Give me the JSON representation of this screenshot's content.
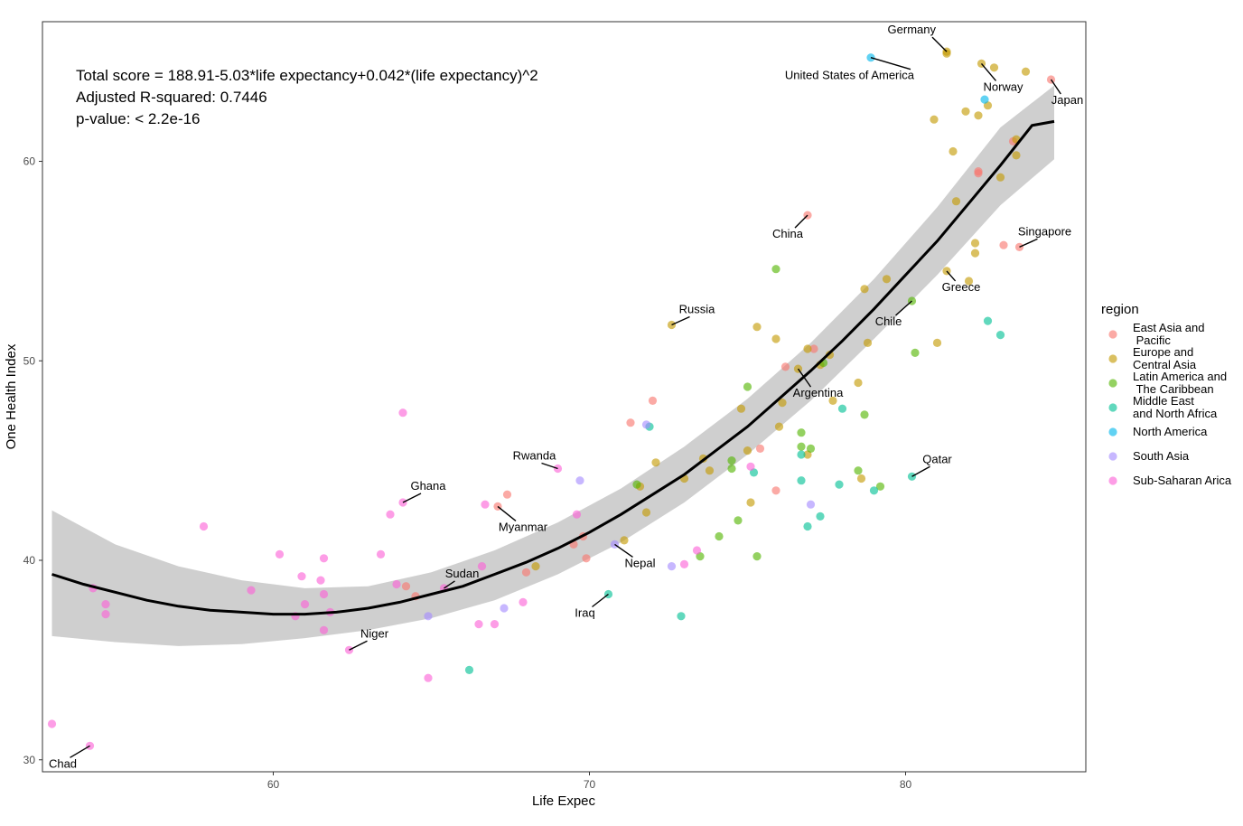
{
  "chart_data": {
    "type": "scatter",
    "xlabel": "Life Expec",
    "ylabel": "One Health Index",
    "xlim": [
      52.7,
      85.7
    ],
    "ylim": [
      29.4,
      67.0
    ],
    "x_ticks": [
      60,
      70,
      80
    ],
    "y_ticks": [
      30,
      40,
      50,
      60
    ],
    "grid": false,
    "annotation": [
      "Total score = 188.91-5.03*life expectancy+0.042*(life expectancy)^2",
      "Adjusted R-squared:  0.7446",
      "p-value: < 2.2e-16"
    ],
    "fit": {
      "type": "quadratic",
      "x_range": [
        53.0,
        84.7
      ],
      "curve": [
        [
          53,
          39.3
        ],
        [
          54,
          38.8
        ],
        [
          55,
          38.4
        ],
        [
          56,
          38.0
        ],
        [
          57,
          37.7
        ],
        [
          58,
          37.5
        ],
        [
          59,
          37.4
        ],
        [
          60,
          37.3
        ],
        [
          61,
          37.3
        ],
        [
          62,
          37.4
        ],
        [
          63,
          37.6
        ],
        [
          64,
          37.9
        ],
        [
          65,
          38.3
        ],
        [
          66,
          38.7
        ],
        [
          67,
          39.3
        ],
        [
          68,
          39.9
        ],
        [
          69,
          40.6
        ],
        [
          70,
          41.4
        ],
        [
          71,
          42.3
        ],
        [
          72,
          43.3
        ],
        [
          73,
          44.3
        ],
        [
          74,
          45.5
        ],
        [
          75,
          46.7
        ],
        [
          76,
          48.1
        ],
        [
          77,
          49.5
        ],
        [
          78,
          51.0
        ],
        [
          79,
          52.6
        ],
        [
          80,
          54.3
        ],
        [
          81,
          56.0
        ],
        [
          82,
          57.9
        ],
        [
          83,
          59.8
        ],
        [
          84,
          61.8
        ],
        [
          84.7,
          62.0
        ]
      ],
      "band": [
        [
          53,
          36.2,
          42.5
        ],
        [
          55,
          35.9,
          40.8
        ],
        [
          57,
          35.7,
          39.7
        ],
        [
          59,
          35.8,
          39.0
        ],
        [
          61,
          36.1,
          38.6
        ],
        [
          63,
          36.5,
          38.7
        ],
        [
          65,
          37.1,
          39.4
        ],
        [
          67,
          38.0,
          40.5
        ],
        [
          69,
          39.3,
          41.9
        ],
        [
          71,
          40.9,
          43.6
        ],
        [
          73,
          42.9,
          45.7
        ],
        [
          75,
          45.3,
          48.1
        ],
        [
          77,
          48.0,
          50.9
        ],
        [
          79,
          51.1,
          54.1
        ],
        [
          81,
          54.3,
          57.7
        ],
        [
          83,
          57.8,
          61.7
        ],
        [
          84.7,
          60.1,
          63.8
        ]
      ]
    },
    "series": [
      {
        "name": "East Asia and\n Pacific",
        "color": "#F8766D",
        "points": [
          [
            84.6,
            64.1
          ],
          [
            83.6,
            55.7
          ],
          [
            83.1,
            55.8
          ],
          [
            83.4,
            61.0
          ],
          [
            82.3,
            59.5
          ],
          [
            82.3,
            59.4
          ],
          [
            76.9,
            57.3
          ],
          [
            77.1,
            50.6
          ],
          [
            76.2,
            49.7
          ],
          [
            72.0,
            48.0
          ],
          [
            71.3,
            46.9
          ],
          [
            75.4,
            45.6
          ],
          [
            75.9,
            43.5
          ],
          [
            67.4,
            43.3
          ],
          [
            67.1,
            42.7
          ],
          [
            69.8,
            41.2
          ],
          [
            69.5,
            40.8
          ],
          [
            69.9,
            40.1
          ],
          [
            68.0,
            39.4
          ],
          [
            64.5,
            38.2
          ],
          [
            64.2,
            38.7
          ]
        ]
      },
      {
        "name": "Europe and\nCentral Asia",
        "color": "#C49A00",
        "points": [
          [
            81.3,
            65.5
          ],
          [
            81.3,
            65.4
          ],
          [
            82.4,
            64.9
          ],
          [
            82.8,
            64.7
          ],
          [
            83.8,
            64.5
          ],
          [
            82.6,
            62.8
          ],
          [
            82.3,
            62.3
          ],
          [
            81.9,
            62.5
          ],
          [
            80.9,
            62.1
          ],
          [
            83.5,
            61.1
          ],
          [
            83.5,
            60.3
          ],
          [
            81.5,
            60.5
          ],
          [
            83.0,
            59.2
          ],
          [
            81.6,
            58.0
          ],
          [
            82.2,
            55.9
          ],
          [
            82.2,
            55.4
          ],
          [
            81.3,
            54.5
          ],
          [
            82.0,
            54.0
          ],
          [
            79.4,
            54.1
          ],
          [
            78.7,
            53.6
          ],
          [
            72.6,
            51.8
          ],
          [
            75.3,
            51.7
          ],
          [
            75.9,
            51.1
          ],
          [
            76.9,
            50.6
          ],
          [
            77.6,
            50.3
          ],
          [
            78.8,
            50.9
          ],
          [
            81.0,
            50.9
          ],
          [
            77.3,
            49.8
          ],
          [
            76.6,
            49.6
          ],
          [
            78.5,
            48.9
          ],
          [
            76.1,
            47.9
          ],
          [
            77.7,
            48.0
          ],
          [
            74.8,
            47.6
          ],
          [
            76.0,
            46.7
          ],
          [
            72.1,
            44.9
          ],
          [
            73.6,
            45.1
          ],
          [
            75.0,
            45.5
          ],
          [
            76.9,
            45.3
          ],
          [
            73.8,
            44.5
          ],
          [
            73.0,
            44.1
          ],
          [
            71.6,
            43.7
          ],
          [
            78.6,
            44.1
          ],
          [
            75.1,
            42.9
          ],
          [
            71.8,
            42.4
          ],
          [
            71.1,
            41.0
          ],
          [
            68.3,
            39.7
          ]
        ]
      },
      {
        "name": "Latin America and\n The Caribbean",
        "color": "#53B400",
        "points": [
          [
            75.9,
            54.6
          ],
          [
            80.2,
            53.0
          ],
          [
            80.3,
            50.4
          ],
          [
            77.4,
            49.9
          ],
          [
            75.0,
            48.7
          ],
          [
            76.7,
            46.4
          ],
          [
            78.7,
            47.3
          ],
          [
            78.5,
            44.5
          ],
          [
            77.0,
            45.6
          ],
          [
            76.7,
            45.7
          ],
          [
            74.5,
            44.6
          ],
          [
            74.5,
            45.0
          ],
          [
            71.5,
            43.8
          ],
          [
            74.7,
            42.0
          ],
          [
            74.1,
            41.2
          ],
          [
            73.5,
            40.2
          ],
          [
            75.3,
            40.2
          ],
          [
            79.2,
            43.7
          ]
        ]
      },
      {
        "name": "Middle East\nand North Africa",
        "color": "#00C094",
        "points": [
          [
            82.6,
            52.0
          ],
          [
            83.0,
            51.3
          ],
          [
            78.0,
            47.6
          ],
          [
            71.9,
            46.7
          ],
          [
            75.2,
            44.4
          ],
          [
            76.7,
            44.0
          ],
          [
            77.9,
            43.8
          ],
          [
            79.0,
            43.5
          ],
          [
            80.2,
            44.2
          ],
          [
            77.3,
            42.2
          ],
          [
            76.9,
            41.7
          ],
          [
            70.6,
            38.3
          ],
          [
            72.9,
            37.2
          ],
          [
            66.2,
            34.5
          ],
          [
            76.7,
            45.3
          ]
        ]
      },
      {
        "name": "North America",
        "color": "#00B6EB",
        "points": [
          [
            78.9,
            65.2
          ],
          [
            82.5,
            63.1
          ]
        ]
      },
      {
        "name": "South Asia",
        "color": "#A58AFF",
        "points": [
          [
            69.7,
            44.0
          ],
          [
            71.8,
            46.8
          ],
          [
            77.0,
            42.8
          ],
          [
            70.8,
            40.8
          ],
          [
            72.6,
            39.7
          ],
          [
            67.3,
            37.6
          ],
          [
            64.9,
            37.2
          ]
        ]
      },
      {
        "name": "Sub-Saharan Arica",
        "color": "#FB61D7",
        "points": [
          [
            64.1,
            47.4
          ],
          [
            69.0,
            44.6
          ],
          [
            64.1,
            42.9
          ],
          [
            63.7,
            42.3
          ],
          [
            66.7,
            42.8
          ],
          [
            69.6,
            42.3
          ],
          [
            57.8,
            41.7
          ],
          [
            60.2,
            40.3
          ],
          [
            61.6,
            40.1
          ],
          [
            63.4,
            40.3
          ],
          [
            61.5,
            39.0
          ],
          [
            60.9,
            39.2
          ],
          [
            59.3,
            38.5
          ],
          [
            61.6,
            38.3
          ],
          [
            63.9,
            38.8
          ],
          [
            66.6,
            39.7
          ],
          [
            65.4,
            38.6
          ],
          [
            67.9,
            37.9
          ],
          [
            61.0,
            37.8
          ],
          [
            60.7,
            37.2
          ],
          [
            61.8,
            37.4
          ],
          [
            61.6,
            36.5
          ],
          [
            66.5,
            36.8
          ],
          [
            67.0,
            36.8
          ],
          [
            62.4,
            35.5
          ],
          [
            64.9,
            34.1
          ],
          [
            54.3,
            38.6
          ],
          [
            54.7,
            37.8
          ],
          [
            54.7,
            37.3
          ],
          [
            53.0,
            31.8
          ],
          [
            54.2,
            30.7
          ],
          [
            73.4,
            40.5
          ],
          [
            75.1,
            44.7
          ],
          [
            73.0,
            39.8
          ]
        ]
      }
    ],
    "point_labels": [
      {
        "text": "Germany",
        "x": 81.3,
        "y": 65.5
      },
      {
        "text": "United States of America",
        "x": 78.9,
        "y": 65.2
      },
      {
        "text": "Norway",
        "x": 82.4,
        "y": 64.9
      },
      {
        "text": "Japan",
        "x": 84.6,
        "y": 64.1
      },
      {
        "text": "China",
        "x": 76.9,
        "y": 57.3
      },
      {
        "text": "Singapore",
        "x": 83.6,
        "y": 55.7
      },
      {
        "text": "Greece",
        "x": 81.3,
        "y": 54.5
      },
      {
        "text": "Russia",
        "x": 72.6,
        "y": 51.8
      },
      {
        "text": "Chile",
        "x": 80.2,
        "y": 53.0
      },
      {
        "text": "Argentina",
        "x": 76.6,
        "y": 49.6
      },
      {
        "text": "Qatar",
        "x": 80.2,
        "y": 44.2
      },
      {
        "text": "Rwanda",
        "x": 69.0,
        "y": 44.6
      },
      {
        "text": "Ghana",
        "x": 64.1,
        "y": 42.9
      },
      {
        "text": "Myanmar",
        "x": 67.1,
        "y": 42.7
      },
      {
        "text": "Nepal",
        "x": 70.8,
        "y": 40.8
      },
      {
        "text": "Sudan",
        "x": 65.4,
        "y": 38.6
      },
      {
        "text": "Iraq",
        "x": 70.6,
        "y": 38.3
      },
      {
        "text": "Niger",
        "x": 62.4,
        "y": 35.5
      },
      {
        "text": "Chad",
        "x": 54.2,
        "y": 30.7
      }
    ],
    "legend": {
      "title": "region",
      "placement": "right",
      "items": [
        "East Asia and\n Pacific",
        "Europe and\nCentral Asia",
        "Latin America and\n The Caribbean",
        "Middle East\nand North Africa",
        "North America",
        "South Asia",
        "Sub-Saharan Arica"
      ]
    }
  }
}
